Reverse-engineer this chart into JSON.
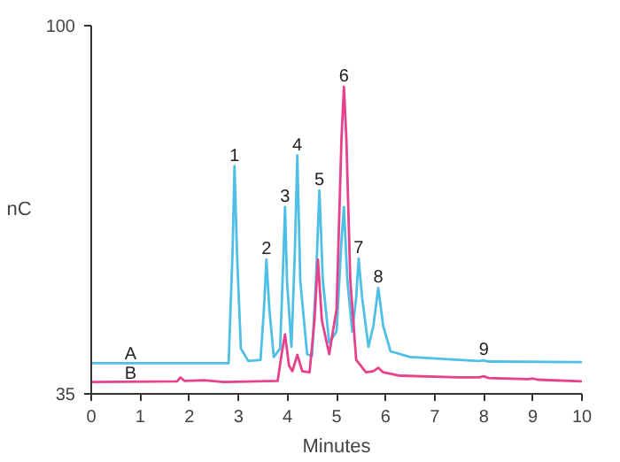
{
  "chart_data": {
    "type": "line",
    "xlabel": "Minutes",
    "ylabel": "nC",
    "xlim": [
      0,
      10
    ],
    "ylim": [
      35,
      100
    ],
    "xticks": [
      0,
      1,
      2,
      3,
      4,
      5,
      6,
      7,
      8,
      9,
      10
    ],
    "yticks": [
      35,
      100
    ],
    "grid": false,
    "marker": "none",
    "line_style": "solid",
    "series": [
      {
        "name": "A",
        "color": "#4fbfe6",
        "x": [
          0,
          2.8,
          2.88,
          2.92,
          2.97,
          3.05,
          3.2,
          3.45,
          3.52,
          3.57,
          3.63,
          3.72,
          3.85,
          3.92,
          3.95,
          3.99,
          4.08,
          4.15,
          4.2,
          4.26,
          4.4,
          4.5,
          4.58,
          4.65,
          4.72,
          4.85,
          5.0,
          5.1,
          5.15,
          5.22,
          5.32,
          5.4,
          5.45,
          5.52,
          5.65,
          5.75,
          5.85,
          5.95,
          6.1,
          6.5,
          7.5,
          7.9,
          8.0,
          8.1,
          10
        ],
        "values": [
          40.4,
          40.4,
          60,
          75.2,
          60,
          43,
          40.8,
          41,
          50,
          58.7,
          50,
          41.5,
          43,
          60,
          68,
          55,
          43.3,
          60,
          77.1,
          55,
          42,
          41.7,
          55,
          70.9,
          55,
          44,
          46,
          62,
          68,
          55,
          46,
          52,
          58.9,
          52,
          43.3,
          47,
          53.7,
          47,
          42.5,
          41.5,
          41,
          40.8,
          40.9,
          40.7,
          40.6
        ]
      },
      {
        "name": "B",
        "color": "#e6418c",
        "x": [
          0,
          1.75,
          1.82,
          1.9,
          2.3,
          2.7,
          3.8,
          3.88,
          3.95,
          4.03,
          4.1,
          4.2,
          4.3,
          4.45,
          4.55,
          4.62,
          4.7,
          4.85,
          5.0,
          5.1,
          5.15,
          5.2,
          5.28,
          5.4,
          5.6,
          5.75,
          5.85,
          5.95,
          6.3,
          7.5,
          7.9,
          8.0,
          8.1,
          8.9,
          9.0,
          9.1,
          10
        ],
        "values": [
          37.1,
          37.2,
          37.9,
          37.3,
          37.4,
          37.1,
          37.3,
          42,
          45.5,
          40,
          39,
          41.9,
          39,
          38.8,
          48,
          58.7,
          48,
          42,
          50,
          80,
          89.2,
          80,
          55,
          41,
          38.8,
          39,
          39.6,
          38.8,
          38.2,
          37.9,
          37.9,
          38.1,
          37.8,
          37.6,
          37.7,
          37.5,
          37.2
        ]
      }
    ],
    "annotations": [
      {
        "text": "1",
        "x": 2.92,
        "y": 75.2
      },
      {
        "text": "2",
        "x": 3.57,
        "y": 58.7
      },
      {
        "text": "3",
        "x": 3.95,
        "y": 68
      },
      {
        "text": "4",
        "x": 4.2,
        "y": 77.1
      },
      {
        "text": "5",
        "x": 4.65,
        "y": 70.9
      },
      {
        "text": "6",
        "x": 5.15,
        "y": 89.2
      },
      {
        "text": "7",
        "x": 5.45,
        "y": 58.9
      },
      {
        "text": "8",
        "x": 5.85,
        "y": 53.7
      },
      {
        "text": "9",
        "x": 8.0,
        "y": 40.9
      }
    ]
  }
}
